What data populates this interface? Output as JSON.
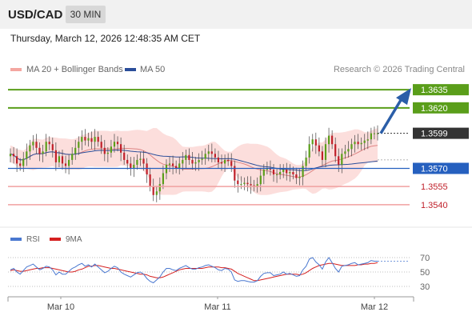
{
  "header": {
    "pair": "USD/CAD",
    "timeframe": "30 MIN"
  },
  "timestamp": "Thursday, March 12, 2026 12:48:35 AM CET",
  "legend": {
    "bollinger": "MA 20 + Bollinger Bands",
    "ma50": "MA 50",
    "rsi": "RSI",
    "rsi_ma": "9MA"
  },
  "credit": "Research © 2026 Trading Central",
  "colors": {
    "resistance": "#5a9e1a",
    "support": "#f0a0a0",
    "ma50": "#2b4e9a",
    "pivot": "#2660bf",
    "current": "#333333",
    "candle_up": "#5a9e1a",
    "candle_down": "#c0202a",
    "bands": "#fbd8d6",
    "ma20": "#d06060",
    "rsi": "#4a78d0",
    "rsi_ma": "#d52020",
    "arrow": "#2b5ea8"
  },
  "chart_data": {
    "type": "candlestick",
    "x_ticks": [
      "Mar 10",
      "Mar 11",
      "Mar 12"
    ],
    "ylim": [
      1.353,
      1.3645
    ],
    "levels": [
      {
        "value": "1.3635",
        "kind": "resistance"
      },
      {
        "value": "1.3620",
        "kind": "resistance"
      },
      {
        "value": "1.3599",
        "kind": "current"
      },
      {
        "value": "1.3570",
        "kind": "pivot"
      },
      {
        "value": "1.3555",
        "kind": "support"
      },
      {
        "value": "1.3540",
        "kind": "support"
      }
    ],
    "target_arrow": {
      "from": 1.3599,
      "to": 1.3635
    },
    "closes": [
      1.3582,
      1.358,
      1.3574,
      1.3572,
      1.3578,
      1.3584,
      1.3589,
      1.3592,
      1.3587,
      1.3582,
      1.3584,
      1.3592,
      1.359,
      1.3585,
      1.3575,
      1.358,
      1.3574,
      1.3572,
      1.3577,
      1.3582,
      1.3587,
      1.3592,
      1.3596,
      1.3593,
      1.3595,
      1.3592,
      1.3596,
      1.3592,
      1.3587,
      1.3582,
      1.3583,
      1.3588,
      1.3592,
      1.359,
      1.3583,
      1.3577,
      1.3574,
      1.357,
      1.3573,
      1.3577,
      1.3578,
      1.3574,
      1.3565,
      1.3555,
      1.3548,
      1.3551,
      1.3557,
      1.3566,
      1.3573,
      1.3574,
      1.3572,
      1.357,
      1.3574,
      1.3577,
      1.3581,
      1.3577,
      1.3574,
      1.3575,
      1.3577,
      1.3578,
      1.3582,
      1.3584,
      1.3582,
      1.3579,
      1.3575,
      1.3574,
      1.3577,
      1.3576,
      1.3572,
      1.356,
      1.3557,
      1.3557,
      1.3558,
      1.3557,
      1.3556,
      1.3555,
      1.3557,
      1.3564,
      1.3569,
      1.357,
      1.3569,
      1.3565,
      1.3565,
      1.3567,
      1.3569,
      1.3566,
      1.3567,
      1.3565,
      1.3562,
      1.3563,
      1.3572,
      1.3579,
      1.359,
      1.3594,
      1.3589,
      1.3584,
      1.3577,
      1.359,
      1.3597,
      1.359,
      1.358,
      1.3573,
      1.3582,
      1.3584,
      1.3586,
      1.359,
      1.3592,
      1.359,
      1.3591,
      1.3593,
      1.3594,
      1.3599,
      1.3599,
      1.3599
    ],
    "rsi_ticks": [
      70,
      50,
      30
    ],
    "rsi": [
      53,
      55,
      50,
      47,
      52,
      57,
      59,
      61,
      57,
      53,
      55,
      58,
      57,
      53,
      46,
      50,
      47,
      47,
      51,
      55,
      57,
      60,
      62,
      58,
      60,
      57,
      61,
      57,
      53,
      49,
      51,
      55,
      58,
      56,
      50,
      47,
      45,
      43,
      46,
      49,
      50,
      47,
      41,
      37,
      35,
      39,
      43,
      50,
      55,
      55,
      53,
      52,
      55,
      57,
      59,
      56,
      54,
      54,
      56,
      57,
      59,
      60,
      58,
      56,
      53,
      52,
      55,
      54,
      50,
      39,
      37,
      38,
      38,
      37,
      36,
      36,
      38,
      44,
      48,
      49,
      49,
      45,
      46,
      47,
      50,
      47,
      48,
      46,
      44,
      45,
      53,
      58,
      68,
      70,
      64,
      60,
      54,
      64,
      70,
      63,
      55,
      50,
      58,
      59,
      60,
      62,
      63,
      60,
      61,
      62,
      63,
      66,
      65,
      65
    ],
    "rsi_ma": [
      52,
      53,
      52,
      51,
      51,
      52,
      53,
      54,
      55,
      55,
      56,
      56,
      56,
      55,
      54,
      53,
      52,
      51,
      50,
      50,
      51,
      53,
      54,
      56,
      58,
      58,
      59,
      59,
      58,
      57,
      56,
      55,
      55,
      54,
      53,
      52,
      51,
      50,
      49,
      48,
      47,
      47,
      46,
      44,
      43,
      42,
      42,
      43,
      45,
      47,
      49,
      51,
      53,
      54,
      55,
      55,
      55,
      55,
      55,
      55,
      56,
      57,
      57,
      57,
      57,
      56,
      56,
      55,
      54,
      51,
      48,
      46,
      44,
      42,
      40,
      38,
      38,
      39,
      40,
      41,
      42,
      43,
      44,
      45,
      46,
      47,
      47,
      47,
      47,
      46,
      47,
      49,
      52,
      55,
      57,
      59,
      60,
      61,
      62,
      62,
      61,
      60,
      59,
      59,
      59,
      59,
      59,
      60,
      60,
      61,
      61,
      62,
      62,
      63
    ]
  }
}
